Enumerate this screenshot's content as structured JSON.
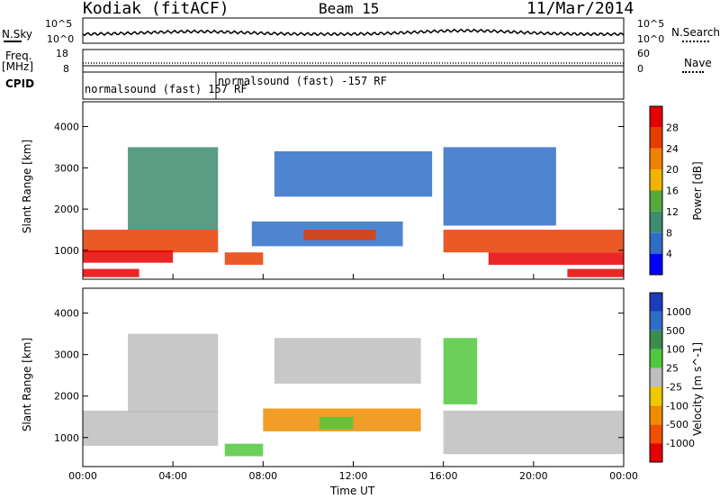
{
  "header": {
    "station": "Kodiak (fitACF)",
    "beam": "Beam 15",
    "date": "11/Mar/2014"
  },
  "summary_panels": {
    "nsky_label": "N.Sky",
    "nsky_ticks": [
      "10^5",
      "10^0"
    ],
    "nsearch_label": "N.Search",
    "nsearch_ticks": [
      "10^5",
      "10^0"
    ],
    "freq_label": "Freq.",
    "freq_unit": "[MHz]",
    "freq_ticks": [
      "18",
      "8"
    ],
    "nave_label": "Nave",
    "nave_ticks": [
      "60",
      "0"
    ],
    "cpid_label": "CPID",
    "cpid_entries": [
      {
        "text": "normalsound (fast) 157 RF"
      },
      {
        "text": "normalsound (fast) -157 RF"
      }
    ]
  },
  "chart_data": [
    {
      "type": "heatmap",
      "name": "power",
      "ylabel": "Slant Range [km]",
      "yticks": [
        1000,
        2000,
        3000,
        4000
      ],
      "ylim": [
        300,
        4600
      ],
      "xlim": [
        0,
        24
      ],
      "colorbar": {
        "label": "Power [dB]",
        "ticks": [
          "28",
          "24",
          "20",
          "16",
          "12",
          "8",
          "4"
        ],
        "colors": [
          "#0000ff",
          "#2f6ec8",
          "#3c8c6e",
          "#55aa3c",
          "#f0b400",
          "#f08200",
          "#e63c00",
          "#e60000"
        ]
      },
      "bands": [
        {
          "t0": 0.0,
          "t1": 6.0,
          "r0": 950,
          "r1": 1500,
          "color": "#e63c00"
        },
        {
          "t0": 0.0,
          "t1": 4.0,
          "r0": 700,
          "r1": 1000,
          "color": "#e60000"
        },
        {
          "t0": 0.0,
          "t1": 2.5,
          "r0": 350,
          "r1": 550,
          "color": "#e60000"
        },
        {
          "t0": 6.3,
          "t1": 8.0,
          "r0": 650,
          "r1": 950,
          "color": "#e63c00"
        },
        {
          "t0": 7.5,
          "t1": 14.2,
          "r0": 1100,
          "r1": 1700,
          "color": "#2f6ec8"
        },
        {
          "t0": 9.8,
          "t1": 13.0,
          "r0": 1250,
          "r1": 1500,
          "color": "#e63c00"
        },
        {
          "t0": 8.5,
          "t1": 15.5,
          "r0": 2300,
          "r1": 3400,
          "color": "#2f6ec8"
        },
        {
          "t0": 16.0,
          "t1": 24.0,
          "r0": 950,
          "r1": 1500,
          "color": "#e63c00"
        },
        {
          "t0": 18.0,
          "t1": 24.0,
          "r0": 650,
          "r1": 950,
          "color": "#e60000"
        },
        {
          "t0": 21.5,
          "t1": 24.0,
          "r0": 350,
          "r1": 550,
          "color": "#e60000"
        },
        {
          "t0": 2.0,
          "t1": 6.0,
          "r0": 1500,
          "r1": 3500,
          "color": "#3c8c6e"
        },
        {
          "t0": 16.0,
          "t1": 21.0,
          "r0": 1600,
          "r1": 3500,
          "color": "#2f6ec8"
        }
      ]
    },
    {
      "type": "heatmap",
      "name": "velocity",
      "ylabel": "Slant Range [km]",
      "yticks": [
        1000,
        2000,
        3000,
        4000
      ],
      "ylim": [
        300,
        4600
      ],
      "xlim": [
        0,
        24
      ],
      "colorbar": {
        "label": "Velocity [m s^-1]",
        "ticks": [
          "1000",
          "500",
          "100",
          "25",
          "-25",
          "-100",
          "-500",
          "-1000"
        ],
        "colors": [
          "#e60000",
          "#f05000",
          "#f08c00",
          "#f0c800",
          "#bebebe",
          "#50c83c",
          "#3c8c50",
          "#2f6ec8",
          "#1e3cbe"
        ]
      },
      "bands": [
        {
          "t0": 0.0,
          "t1": 6.0,
          "r0": 800,
          "r1": 1650,
          "color": "#bebebe"
        },
        {
          "t0": 6.3,
          "t1": 8.0,
          "r0": 550,
          "r1": 850,
          "color": "#50c83c"
        },
        {
          "t0": 8.0,
          "t1": 15.0,
          "r0": 1150,
          "r1": 1700,
          "color": "#f08c00"
        },
        {
          "t0": 10.5,
          "t1": 12.0,
          "r0": 1200,
          "r1": 1500,
          "color": "#50c83c"
        },
        {
          "t0": 16.0,
          "t1": 24.0,
          "r0": 600,
          "r1": 1650,
          "color": "#bebebe"
        },
        {
          "t0": 16.0,
          "t1": 17.5,
          "r0": 1800,
          "r1": 3400,
          "color": "#50c83c"
        },
        {
          "t0": 2.0,
          "t1": 6.0,
          "r0": 1600,
          "r1": 3500,
          "color": "#bebebe"
        },
        {
          "t0": 8.5,
          "t1": 15.0,
          "r0": 2300,
          "r1": 3400,
          "color": "#bebebe"
        }
      ]
    }
  ],
  "xaxis": {
    "label": "Time UT",
    "ticks": [
      "00:00",
      "04:00",
      "08:00",
      "12:00",
      "16:00",
      "20:00",
      "00:00"
    ]
  }
}
